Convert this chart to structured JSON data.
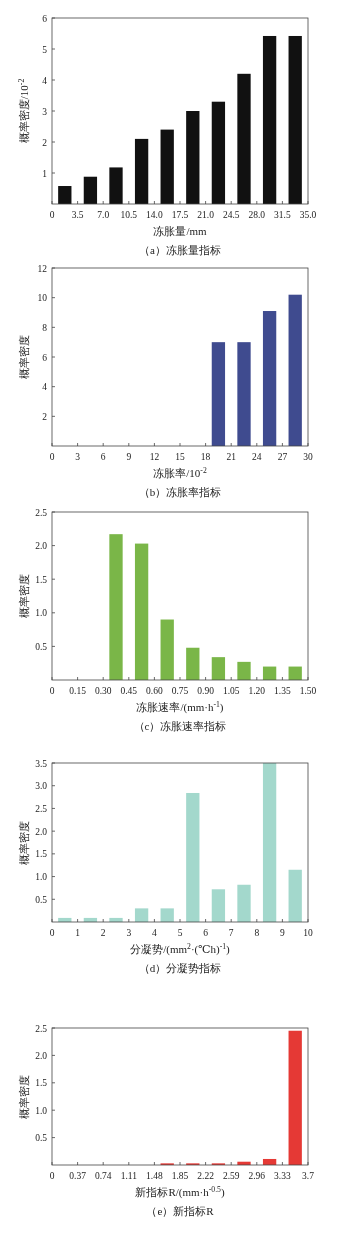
{
  "chart_data": [
    {
      "type": "histogram",
      "title": "（a）冻胀量指标",
      "xlabel": "冻胀量/mm",
      "ylabel": "概率密度/10$^{-2}$",
      "color": "#111111",
      "bins": [
        0,
        3.5,
        7.0,
        10.5,
        14.0,
        17.5,
        21.0,
        24.5,
        28.0,
        31.5,
        35.0
      ],
      "values": [
        0.58,
        0.88,
        1.18,
        2.1,
        2.4,
        3.0,
        3.3,
        4.2,
        5.42,
        5.42
      ],
      "xlim": [
        0,
        35
      ],
      "xticks": [
        0,
        {
          "value": 3.5,
          "label": "3.5"
        },
        {
          "value": 7,
          "label": "7.0"
        },
        {
          "value": 10.5,
          "label": "10.5"
        },
        {
          "value": 14,
          "label": "14.0"
        },
        {
          "value": 17.5,
          "label": "17.5"
        },
        {
          "value": 21,
          "label": "21.0"
        },
        {
          "value": 24.5,
          "label": "24.5"
        },
        {
          "value": 28,
          "label": "28.0"
        },
        {
          "value": 31.5,
          "label": "31.5"
        },
        {
          "value": 35,
          "label": "35.0"
        }
      ],
      "ylim": [
        0,
        6
      ],
      "yticks": [
        1,
        2,
        3,
        4,
        5,
        6
      ]
    },
    {
      "type": "histogram",
      "title": "（b）冻胀率指标",
      "xlabel": "冻胀率/10$^{-2}$",
      "ylabel": "概率密度",
      "color": "#3f4b8f",
      "bins": [
        0,
        3,
        6,
        9,
        12,
        15,
        18,
        21,
        24,
        27,
        30
      ],
      "values": [
        0,
        0,
        0,
        0,
        0,
        0,
        7.0,
        7.0,
        9.1,
        10.2
      ],
      "xlim": [
        0,
        30
      ],
      "xticks": [
        0,
        3,
        6,
        9,
        12,
        15,
        18,
        21,
        24,
        27,
        30
      ],
      "ylim": [
        0,
        12
      ],
      "yticks": [
        2,
        4,
        6,
        8,
        10,
        12
      ]
    },
    {
      "type": "histogram",
      "title": "（c）冻胀速率指标",
      "xlabel": "冻胀速率/(mm·h$^{-1}$)",
      "ylabel": "概率密度",
      "color": "#7ab648",
      "bins": [
        0,
        0.15,
        0.3,
        0.45,
        0.6,
        0.75,
        0.9,
        1.05,
        1.2,
        1.35,
        1.5
      ],
      "values": [
        0,
        0,
        2.17,
        2.03,
        0.9,
        0.48,
        0.34,
        0.27,
        0.2,
        0.2
      ],
      "xlim": [
        0,
        1.5
      ],
      "xticks": [
        0,
        0.15,
        {
          "value": 0.3,
          "label": "0.30"
        },
        0.45,
        {
          "value": 0.6,
          "label": "0.60"
        },
        0.75,
        {
          "value": 0.9,
          "label": "0.90"
        },
        1.05,
        {
          "value": 1.2,
          "label": "1.20"
        },
        1.35,
        {
          "value": 1.5,
          "label": "1.50"
        }
      ],
      "ylim": [
        0,
        2.5
      ],
      "yticks": [
        0.5,
        {
          "value": 1,
          "label": "1.0"
        },
        1.5,
        {
          "value": 2,
          "label": "2.0"
        },
        2.5
      ]
    },
    {
      "type": "histogram",
      "title": "（d）分凝势指标",
      "xlabel": "分凝势/(mm$^{2}$·(℃h)$^{-1}$)",
      "ylabel": "概率密度",
      "color": "#a3d8cc",
      "bins": [
        0,
        1,
        2,
        3,
        4,
        5,
        6,
        7,
        8,
        9,
        10
      ],
      "values": [
        0.09,
        0.09,
        0.09,
        0.3,
        0.3,
        2.84,
        0.72,
        0.82,
        3.5,
        1.15
      ],
      "xlim": [
        0,
        10
      ],
      "xticks": [
        0,
        1,
        2,
        3,
        4,
        5,
        6,
        7,
        8,
        9,
        10
      ],
      "ylim": [
        0,
        3.5
      ],
      "yticks": [
        0.5,
        {
          "value": 1,
          "label": "1.0"
        },
        1.5,
        {
          "value": 2,
          "label": "2.0"
        },
        2.5,
        {
          "value": 3,
          "label": "3.0"
        },
        3.5
      ]
    },
    {
      "type": "histogram",
      "title": "（e）新指标R",
      "xlabel": "新指标R/(mm·h$^{-0.5}$)",
      "ylabel": "概率密度",
      "color": "#e53935",
      "bins": [
        0,
        0.37,
        0.74,
        1.11,
        1.48,
        1.85,
        2.22,
        2.59,
        2.96,
        3.33,
        3.7
      ],
      "values": [
        0,
        0,
        0,
        0,
        0.03,
        0.03,
        0.03,
        0.06,
        0.11,
        2.45
      ],
      "xlim": [
        0,
        3.7
      ],
      "xticks": [
        0,
        0.37,
        0.74,
        1.11,
        1.48,
        1.85,
        2.22,
        2.59,
        2.96,
        3.33,
        3.7
      ],
      "ylim": [
        0,
        2.5
      ],
      "yticks": [
        0.5,
        {
          "value": 1,
          "label": "1.0"
        },
        1.5,
        {
          "value": 2,
          "label": "2.0"
        },
        2.5
      ]
    }
  ]
}
